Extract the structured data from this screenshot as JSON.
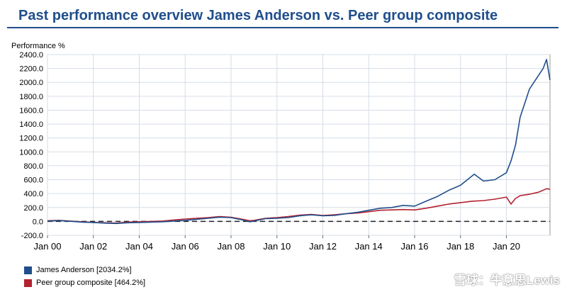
{
  "header": {
    "title": "Past performance overview James Anderson vs. Peer group composite"
  },
  "watermark": "雪球：牛意思Lewis",
  "chart_data": {
    "type": "line",
    "title": "Past performance overview James Anderson vs. Peer group composite",
    "ylabel": "Performance %",
    "xlabel": "",
    "ylim": [
      -200,
      2400
    ],
    "yticks": [
      -200,
      0,
      200,
      400,
      600,
      800,
      1000,
      1200,
      1400,
      1600,
      1800,
      2000,
      2200,
      2400
    ],
    "ytick_labels": [
      "-200.0",
      "0.0",
      "200.0",
      "400.0",
      "600.0",
      "800.0",
      "1000.0",
      "1200.0",
      "1400.0",
      "1600.0",
      "1800.0",
      "2000.0",
      "2200.0",
      "2400.0"
    ],
    "xlim": [
      2000.0,
      2021.9
    ],
    "xticks": [
      2000,
      2002,
      2004,
      2006,
      2008,
      2010,
      2012,
      2014,
      2016,
      2018,
      2020
    ],
    "xtick_labels": [
      "Jan 00",
      "Jan 02",
      "Jan 04",
      "Jan 06",
      "Jan 08",
      "Jan 10",
      "Jan 12",
      "Jan 14",
      "Jan 16",
      "Jan 18",
      "Jan 20"
    ],
    "grid": true,
    "zero_line": "dashed",
    "legend_position": "bottom-left",
    "series": [
      {
        "name": "James Anderson [2034.2%]",
        "color": "#1f4e8c",
        "x": [
          2000.0,
          2000.5,
          2001.0,
          2001.5,
          2002.0,
          2002.5,
          2003.0,
          2003.5,
          2004.0,
          2004.5,
          2005.0,
          2005.5,
          2006.0,
          2006.5,
          2007.0,
          2007.5,
          2008.0,
          2008.5,
          2008.8,
          2009.0,
          2009.5,
          2010.0,
          2010.5,
          2011.0,
          2011.5,
          2012.0,
          2012.5,
          2013.0,
          2013.5,
          2014.0,
          2014.5,
          2015.0,
          2015.5,
          2016.0,
          2016.5,
          2017.0,
          2017.5,
          2018.0,
          2018.3,
          2018.6,
          2019.0,
          2019.5,
          2020.0,
          2020.2,
          2020.4,
          2020.6,
          2020.8,
          2021.0,
          2021.2,
          2021.4,
          2021.6,
          2021.75,
          2021.9
        ],
        "y": [
          5,
          12,
          2,
          -10,
          -15,
          -25,
          -30,
          -20,
          -15,
          -10,
          -5,
          5,
          15,
          30,
          45,
          60,
          55,
          20,
          -5,
          5,
          40,
          45,
          55,
          80,
          95,
          80,
          85,
          110,
          130,
          160,
          190,
          200,
          230,
          220,
          290,
          360,
          450,
          520,
          600,
          680,
          580,
          600,
          700,
          870,
          1100,
          1500,
          1700,
          1900,
          2000,
          2100,
          2200,
          2330,
          2034
        ]
      },
      {
        "name": "Peer group composite [464.2%]",
        "color": "#b22230",
        "x": [
          2000.0,
          2000.5,
          2001.0,
          2001.5,
          2002.0,
          2002.5,
          2003.0,
          2003.5,
          2004.0,
          2004.5,
          2005.0,
          2005.5,
          2006.0,
          2006.5,
          2007.0,
          2007.5,
          2008.0,
          2008.5,
          2008.8,
          2009.0,
          2009.5,
          2010.0,
          2010.5,
          2011.0,
          2011.5,
          2012.0,
          2012.5,
          2013.0,
          2013.5,
          2014.0,
          2014.5,
          2015.0,
          2015.5,
          2016.0,
          2016.5,
          2017.0,
          2017.5,
          2018.0,
          2018.5,
          2019.0,
          2019.5,
          2020.0,
          2020.2,
          2020.4,
          2020.6,
          2021.0,
          2021.4,
          2021.75,
          2021.9
        ],
        "y": [
          10,
          15,
          5,
          -5,
          -15,
          -20,
          -25,
          -10,
          -5,
          0,
          5,
          20,
          35,
          45,
          55,
          70,
          60,
          30,
          10,
          15,
          45,
          55,
          70,
          90,
          100,
          85,
          95,
          110,
          120,
          140,
          160,
          165,
          170,
          165,
          190,
          220,
          250,
          270,
          290,
          300,
          320,
          350,
          250,
          330,
          370,
          390,
          420,
          470,
          464
        ]
      }
    ]
  }
}
